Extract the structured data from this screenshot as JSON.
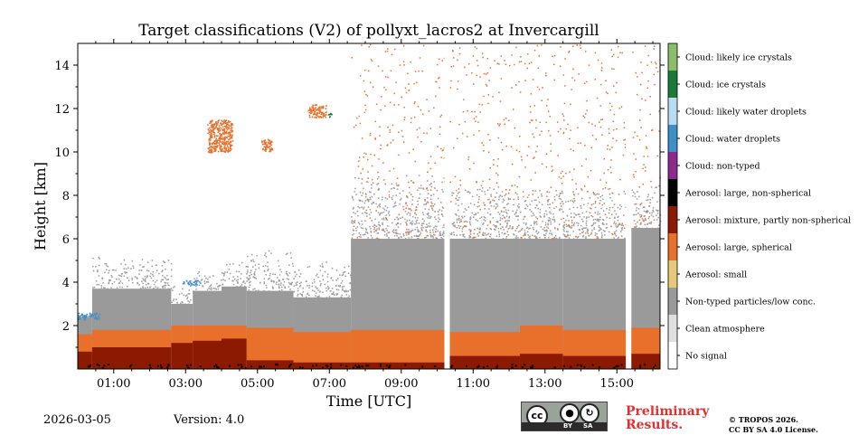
{
  "chart_data": {
    "type": "heatmap",
    "title": "Target classifications (V2) of pollyxt_lacros2 at Invercargill",
    "xlabel": "Time [UTC]",
    "ylabel": "Height [km]",
    "x_range_hours": [
      0,
      16.2
    ],
    "xticks": [
      "01:00",
      "03:00",
      "05:00",
      "07:00",
      "09:00",
      "11:00",
      "13:00",
      "15:00"
    ],
    "xtick_hours": [
      1,
      3,
      5,
      7,
      9,
      11,
      13,
      15
    ],
    "ylim": [
      0,
      15
    ],
    "yticks": [
      2,
      4,
      6,
      8,
      10,
      12,
      14
    ],
    "colorbar_classes": [
      {
        "label": "No signal",
        "color": "#ffffff"
      },
      {
        "label": "Clean atmosphere",
        "color": "#e0e0e0"
      },
      {
        "label": "Non-typed particles/low conc.",
        "color": "#9a9a9a"
      },
      {
        "label": "Aerosol: small",
        "color": "#e6c87a"
      },
      {
        "label": "Aerosol: large, spherical",
        "color": "#e8702a"
      },
      {
        "label": "Aerosol: mixture, partly non-spherical",
        "color": "#8b1a00"
      },
      {
        "label": "Aerosol: large, non-spherical",
        "color": "#000000"
      },
      {
        "label": "Cloud: non-typed",
        "color": "#8e2a8e"
      },
      {
        "label": "Cloud: water droplets",
        "color": "#3e8ec8"
      },
      {
        "label": "Cloud: likely water droplets",
        "color": "#b8dcf2"
      },
      {
        "label": "Cloud: ice crystals",
        "color": "#1a7a3a"
      },
      {
        "label": "Cloud: likely ice crystals",
        "color": "#8cbd6a"
      }
    ],
    "data_gaps_hours": [
      [
        10.2,
        10.35
      ],
      [
        15.25,
        15.4
      ]
    ],
    "layers_km_by_time": [
      {
        "hour_start": 0.0,
        "hour_end": 0.4,
        "dark_top": 0.8,
        "orange_top": 1.6,
        "grey_top": 2.4,
        "upper_top": 2.6
      },
      {
        "hour_start": 0.4,
        "hour_end": 2.6,
        "dark_top": 1.0,
        "orange_top": 1.8,
        "grey_top": 3.7,
        "upper_top": 5.2
      },
      {
        "hour_start": 2.6,
        "hour_end": 3.2,
        "dark_top": 1.2,
        "orange_top": 2.0,
        "grey_top": 3.0,
        "upper_top": 4.0
      },
      {
        "hour_start": 3.2,
        "hour_end": 4.0,
        "dark_top": 1.3,
        "orange_top": 2.0,
        "grey_top": 3.6,
        "upper_top": 4.6
      },
      {
        "hour_start": 4.0,
        "hour_end": 4.7,
        "dark_top": 1.4,
        "orange_top": 2.0,
        "grey_top": 3.8,
        "upper_top": 5.0
      },
      {
        "hour_start": 4.7,
        "hour_end": 6.0,
        "dark_top": 0.4,
        "orange_top": 1.9,
        "grey_top": 3.6,
        "upper_top": 5.5
      },
      {
        "hour_start": 6.0,
        "hour_end": 7.6,
        "dark_top": 0.3,
        "orange_top": 1.7,
        "grey_top": 3.3,
        "upper_top": 5.0
      },
      {
        "hour_start": 7.6,
        "hour_end": 10.2,
        "dark_top": 0.3,
        "orange_top": 1.8,
        "grey_top": 6.0,
        "upper_top": 9.0
      },
      {
        "hour_start": 10.35,
        "hour_end": 12.3,
        "dark_top": 0.6,
        "orange_top": 1.7,
        "grey_top": 6.0,
        "upper_top": 8.5
      },
      {
        "hour_start": 12.3,
        "hour_end": 13.5,
        "dark_top": 0.7,
        "orange_top": 2.0,
        "grey_top": 6.0,
        "upper_top": 8.5
      },
      {
        "hour_start": 13.5,
        "hour_end": 15.25,
        "dark_top": 0.6,
        "orange_top": 1.8,
        "grey_top": 6.0,
        "upper_top": 8.5
      },
      {
        "hour_start": 15.4,
        "hour_end": 16.2,
        "dark_top": 0.7,
        "orange_top": 1.9,
        "grey_top": 6.5,
        "upper_top": 8.5
      }
    ],
    "cloud_patches": [
      {
        "class": "Aerosol: large, spherical",
        "hour_start": 3.6,
        "hour_end": 4.3,
        "km_bottom": 10.0,
        "km_top": 11.5
      },
      {
        "class": "Aerosol: large, spherical",
        "hour_start": 5.1,
        "hour_end": 5.4,
        "km_bottom": 10.0,
        "km_top": 10.6
      },
      {
        "class": "Aerosol: large, spherical",
        "hour_start": 6.4,
        "hour_end": 6.9,
        "km_bottom": 11.6,
        "km_top": 12.2
      },
      {
        "class": "Cloud: ice crystals",
        "hour_start": 6.95,
        "hour_end": 7.05,
        "km_bottom": 11.6,
        "km_top": 11.8
      },
      {
        "class": "Cloud: water droplets",
        "hour_start": 2.9,
        "hour_end": 3.4,
        "km_bottom": 3.9,
        "km_top": 4.1
      },
      {
        "class": "Cloud: water droplets",
        "hour_start": 0.0,
        "hour_end": 0.6,
        "km_bottom": 2.3,
        "km_top": 2.6
      }
    ]
  },
  "footer": {
    "date": "2026-03-05",
    "version": "Version: 4.0",
    "preliminary_line1": "Preliminary",
    "preliminary_line2": "Results.",
    "license_line1": "© TROPOS 2026.",
    "license_line2": "CC BY SA 4.0 License.",
    "cc_by": "BY",
    "cc_sa": "SA"
  }
}
